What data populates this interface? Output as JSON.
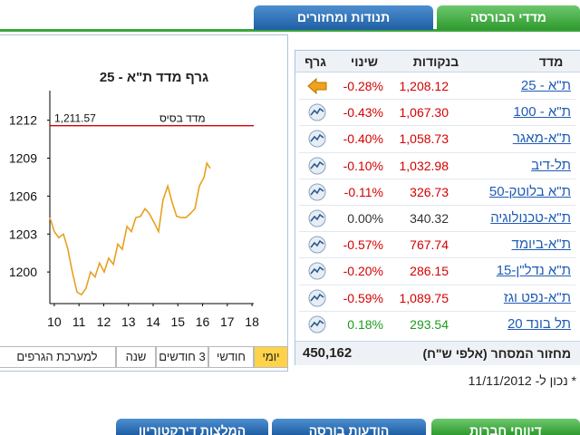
{
  "tabs": [
    "מדדי הבורסה",
    "תנודות ומחזורים"
  ],
  "table": {
    "headers": [
      "מדד",
      "בנקודות",
      "שינוי",
      "גרף"
    ],
    "rows": [
      {
        "name": "ת\"א - 25",
        "points": "1,208.12",
        "change": "-0.28%",
        "color": "#d40000"
      },
      {
        "name": "ת\"א - 100",
        "points": "1,067.30",
        "change": "-0.43%",
        "color": "#d40000"
      },
      {
        "name": "ת\"א-מאגר",
        "points": "1,058.73",
        "change": "-0.40%",
        "color": "#d40000"
      },
      {
        "name": "תל-דיב",
        "points": "1,032.98",
        "change": "-0.10%",
        "color": "#d40000"
      },
      {
        "name": "ת\"א בלוטק-50",
        "points": "326.73",
        "change": "-0.11%",
        "color": "#d40000"
      },
      {
        "name": "ת\"א-טכנולוגיה",
        "points": "340.32",
        "change": "0.00%",
        "color": "#333333"
      },
      {
        "name": "ת\"א-ביומד",
        "points": "767.74",
        "change": "-0.57%",
        "color": "#d40000"
      },
      {
        "name": "ת\"א נדל\"ן-15",
        "points": "286.15",
        "change": "-0.20%",
        "color": "#d40000"
      },
      {
        "name": "ת\"א-נפט וגז",
        "points": "1,089.75",
        "change": "-0.59%",
        "color": "#d40000"
      },
      {
        "name": "תל בונד 20",
        "points": "293.54",
        "change": "0.18%",
        "color": "#1f9a1f"
      }
    ],
    "footer_label": "מחזור המסחר (אלפי ש\"ח)",
    "footer_value": "450,162"
  },
  "chart_data": {
    "type": "line",
    "title": "גרף מדד ת\"א - 25",
    "color": "#e8a020",
    "x": [
      9.82,
      10,
      10.18,
      10.37,
      10.55,
      10.73,
      10.92,
      11.1,
      11.28,
      11.47,
      11.65,
      11.83,
      12.02,
      12.2,
      12.39,
      12.57,
      12.75,
      12.94,
      13.12,
      13.3,
      13.49,
      13.67,
      13.85,
      14.04,
      14.22,
      14.4,
      14.59,
      14.77,
      14.95,
      15.14,
      15.32,
      15.5,
      15.69,
      15.87,
      16.06,
      16.17,
      16.31
    ],
    "values": [
      1204.3,
      1203.2,
      1202.7,
      1203,
      1201.8,
      1200,
      1198.4,
      1198.2,
      1198.7,
      1200,
      1199.6,
      1200.7,
      1200,
      1201.1,
      1200.6,
      1202.2,
      1201.8,
      1203.6,
      1203.2,
      1204.3,
      1204.4,
      1205,
      1204.6,
      1203.9,
      1203.2,
      1205.7,
      1206.8,
      1205.5,
      1204.4,
      1204.3,
      1204.3,
      1204.6,
      1205,
      1206.8,
      1207.5,
      1208.6,
      1208.2
    ],
    "xlim": [
      9.82,
      18.07
    ],
    "ylim": [
      1197.5,
      1214.7
    ],
    "xticks": [
      10,
      11,
      12,
      13,
      14,
      15,
      16,
      17,
      18
    ],
    "yticks": [
      1200,
      1203,
      1206,
      1209,
      1212
    ],
    "base": {
      "label": "מדד בסיס",
      "value": 1211.57,
      "value_label": "1,211.57",
      "color": "#d40000"
    }
  },
  "periods": [
    "יומי",
    "חודשי",
    "3 חודשים",
    "שנה",
    "למערכת הגרפים"
  ],
  "note": "* נכון ל- 11/11/2012",
  "bottom_tabs": [
    "דיווחי חברות",
    "הודעות בורסה",
    "המלצות דירקטוריון"
  ]
}
